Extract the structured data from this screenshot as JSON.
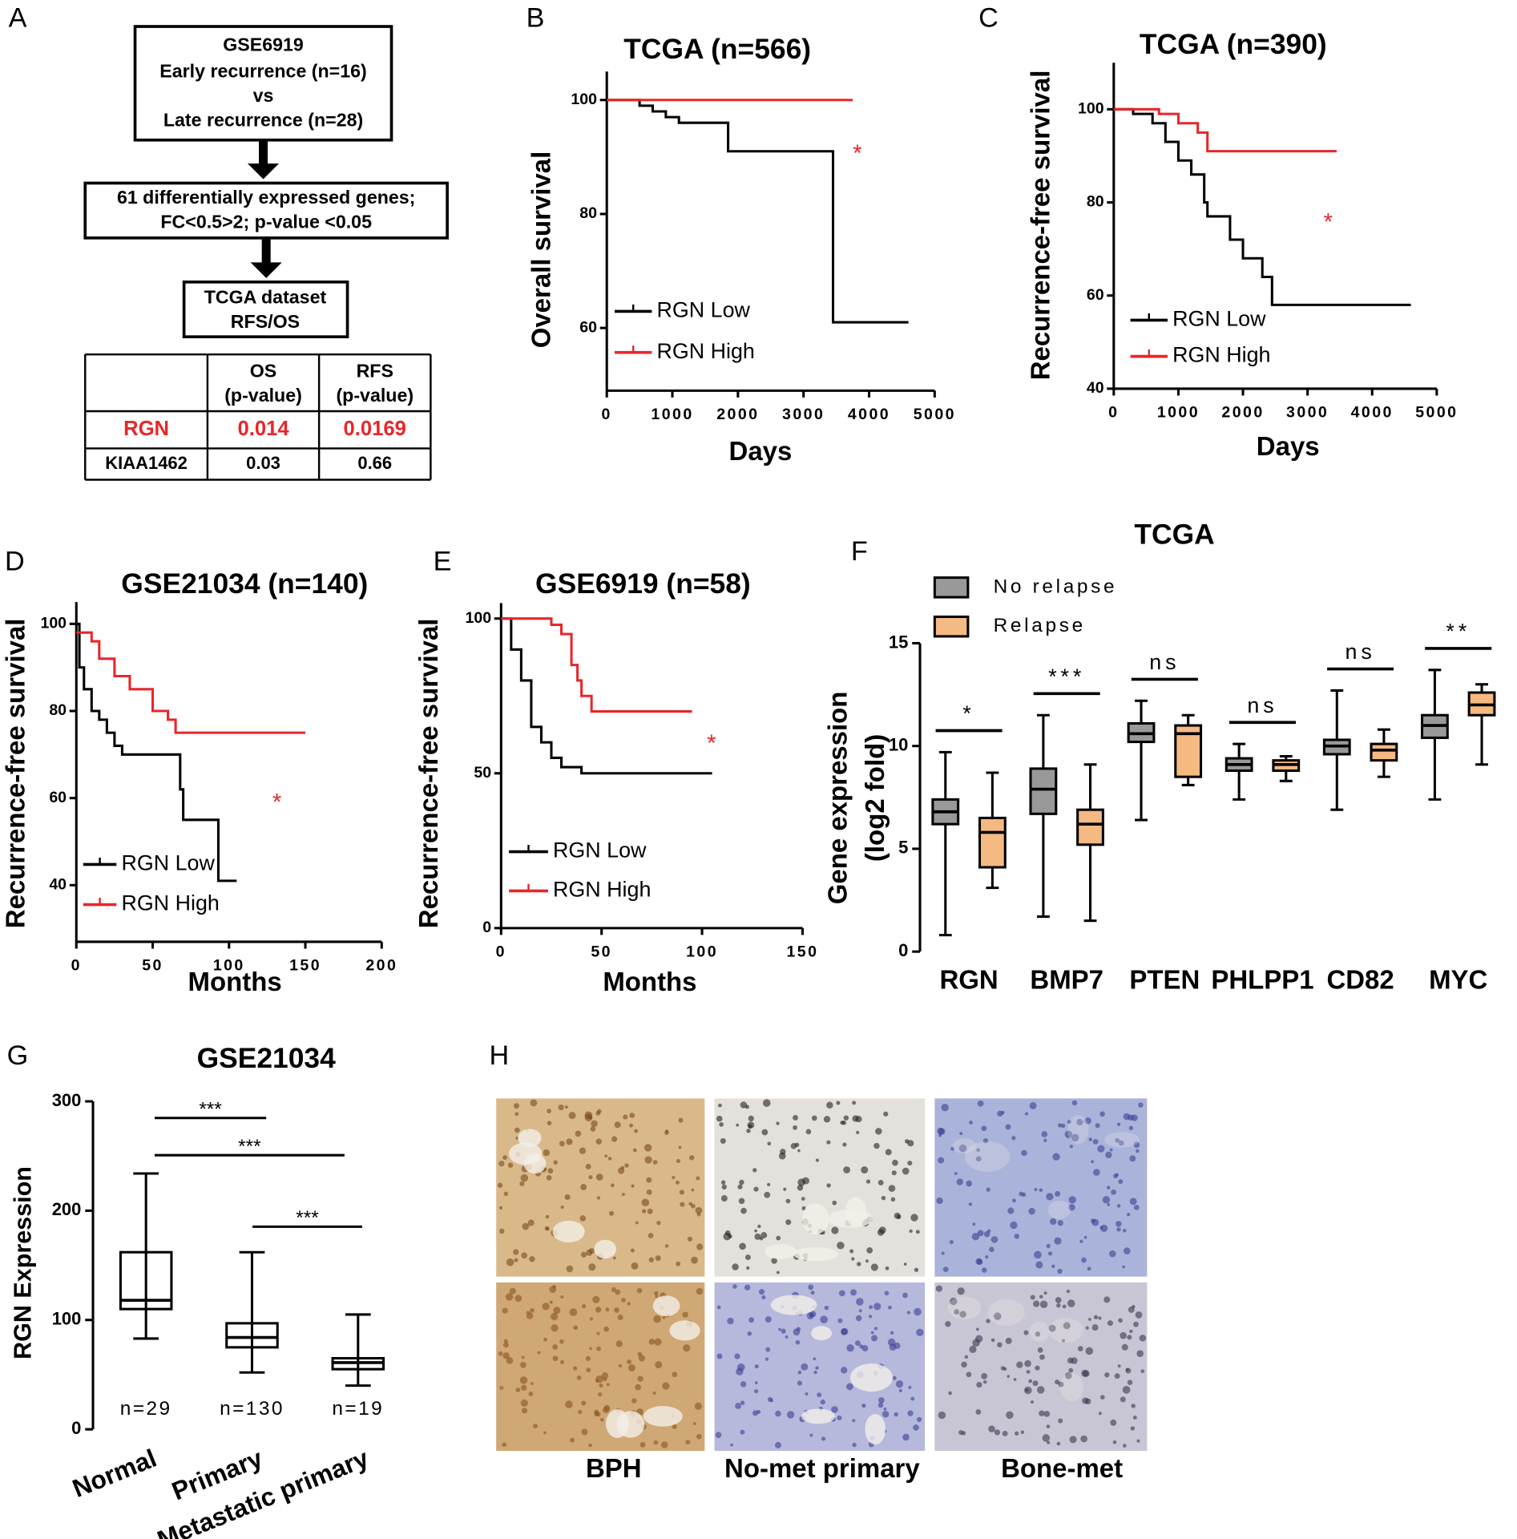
{
  "panel_labels": [
    "A",
    "B",
    "C",
    "D",
    "E",
    "F",
    "G",
    "H"
  ],
  "flowchart": {
    "box1": [
      "GSE6919",
      "Early recurrence (n=16)",
      "vs",
      "Late recurrence (n=28)"
    ],
    "box2": [
      "61 differentially expressed genes;",
      "FC<0.5>2; p-value <0.05"
    ],
    "box3": [
      "TCGA dataset",
      "RFS/OS"
    ]
  },
  "table": {
    "header": [
      [
        "OS",
        "(p-value)"
      ],
      [
        "RFS",
        "(p-value)"
      ]
    ],
    "rows": [
      [
        "RGN",
        "0.014",
        "0.0169"
      ],
      [
        "KIAA1462",
        "0.03",
        "0.66"
      ]
    ]
  },
  "chart_data": [
    {
      "type": "km",
      "title": "TCGA (n=566)",
      "y_label": "Overall survival",
      "x_label": "Days",
      "xlim": [
        0,
        5000
      ],
      "xticks": [
        0,
        1000,
        2000,
        3000,
        4000,
        5000
      ],
      "ylim": [
        49,
        105
      ],
      "yticks": [
        60,
        80,
        100
      ],
      "annotations": [
        "*"
      ],
      "series": [
        {
          "name": "RGN Low",
          "color": "#000000",
          "x": [
            0,
            500,
            700,
            900,
            1100,
            1400,
            1850,
            3450,
            4600
          ],
          "values": [
            100,
            99,
            98,
            97,
            96,
            96,
            91,
            61,
            61
          ]
        },
        {
          "name": "RGN High",
          "color": "#e8262a",
          "x": [
            0,
            3750
          ],
          "values": [
            100,
            100
          ]
        }
      ]
    },
    {
      "type": "km",
      "title": "TCGA (n=390)",
      "y_label": "Recurrence-free survival",
      "x_label": "Days",
      "xlim": [
        0,
        5000
      ],
      "xticks": [
        0,
        1000,
        2000,
        3000,
        4000,
        5000
      ],
      "ylim": [
        40,
        110
      ],
      "yticks": [
        40,
        60,
        80,
        100
      ],
      "annotations": [
        "*"
      ],
      "series": [
        {
          "name": "RGN Low",
          "color": "#000000",
          "x": [
            0,
            300,
            600,
            800,
            1000,
            1200,
            1400,
            1450,
            1800,
            2000,
            2300,
            2450,
            4600
          ],
          "values": [
            100,
            99,
            97,
            93,
            89,
            86,
            80,
            77,
            72,
            68,
            64,
            58,
            58
          ]
        },
        {
          "name": "RGN High",
          "color": "#e8262a",
          "x": [
            0,
            700,
            1000,
            1300,
            1450,
            3450
          ],
          "values": [
            100,
            99,
            97,
            95,
            91,
            91
          ]
        }
      ]
    },
    {
      "type": "km",
      "title": "GSE21034 (n=140)",
      "y_label": "Recurrence-free survival",
      "x_label": "Months",
      "xlim": [
        0,
        200
      ],
      "xticks": [
        0,
        50,
        100,
        150,
        200
      ],
      "ylim": [
        27,
        105
      ],
      "yticks": [
        40,
        60,
        80,
        100
      ],
      "annotations": [
        "*"
      ],
      "series": [
        {
          "name": "RGN Low",
          "color": "#000000",
          "x": [
            0,
            2,
            5,
            10,
            15,
            20,
            25,
            30,
            65,
            68,
            70,
            92,
            93,
            105
          ],
          "values": [
            100,
            90,
            85,
            80,
            78,
            75,
            72,
            70,
            70,
            62,
            55,
            55,
            41,
            41
          ]
        },
        {
          "name": "RGN High",
          "color": "#e8262a",
          "x": [
            0,
            10,
            15,
            25,
            35,
            50,
            60,
            65,
            150
          ],
          "values": [
            98,
            96,
            92,
            88,
            85,
            80,
            78,
            75,
            75
          ]
        }
      ]
    },
    {
      "type": "km",
      "title": "GSE6919 (n=58)",
      "y_label": "Recurrence-free survival",
      "x_label": "Months",
      "xlim": [
        0,
        150
      ],
      "xticks": [
        0,
        50,
        100,
        150
      ],
      "ylim": [
        0,
        105
      ],
      "yticks": [
        0,
        50,
        100
      ],
      "annotations": [
        "*"
      ],
      "series": [
        {
          "name": "RGN Low",
          "color": "#000000",
          "x": [
            0,
            5,
            10,
            15,
            20,
            25,
            30,
            40,
            105
          ],
          "values": [
            100,
            90,
            80,
            65,
            60,
            55,
            52,
            50,
            50
          ]
        },
        {
          "name": "RGN High",
          "color": "#e8262a",
          "x": [
            0,
            25,
            30,
            35,
            38,
            40,
            45,
            95
          ],
          "values": [
            100,
            98,
            95,
            85,
            80,
            75,
            70,
            70
          ]
        }
      ]
    },
    {
      "type": "grouped-box",
      "title": "TCGA",
      "y_label": [
        "Gene expression",
        "(log2 fold)"
      ],
      "categories": [
        "RGN",
        "BMP7",
        "PTEN",
        "PHLPP1",
        "CD82",
        "MYC"
      ],
      "ylim": [
        0,
        15
      ],
      "yticks": [
        0,
        5,
        10,
        15
      ],
      "annotations": [
        "*",
        "***",
        "ns",
        "ns",
        "ns",
        "**"
      ],
      "series": [
        {
          "name": "No relapse",
          "color": "#999999",
          "values": [
            [
              0.8,
              6.2,
              6.8,
              7.4,
              9.7
            ],
            [
              1.7,
              6.7,
              7.9,
              8.9,
              11.5
            ],
            [
              6.4,
              10.2,
              10.6,
              11.1,
              12.2
            ],
            [
              7.4,
              8.8,
              9.1,
              9.4,
              10.1
            ],
            [
              6.9,
              9.6,
              10.0,
              10.3,
              12.7
            ],
            [
              7.4,
              10.4,
              11.0,
              11.5,
              13.7
            ]
          ]
        },
        {
          "name": "Relapse",
          "color": "#f5b982",
          "values": [
            [
              3.1,
              4.1,
              5.8,
              6.5,
              8.7
            ],
            [
              1.5,
              5.2,
              6.2,
              6.9,
              9.1
            ],
            [
              8.1,
              8.5,
              10.6,
              11.0,
              11.5
            ],
            [
              8.3,
              8.8,
              9.1,
              9.3,
              9.5
            ],
            [
              8.5,
              9.3,
              9.8,
              10.1,
              10.8
            ],
            [
              9.1,
              11.5,
              12.0,
              12.6,
              13.0
            ]
          ]
        }
      ]
    },
    {
      "type": "box",
      "title": "GSE21034",
      "y_label": "RGN Expression",
      "categories": [
        "Normal",
        "Primary",
        "Metastatic primary"
      ],
      "ylim": [
        0,
        300
      ],
      "yticks": [
        0,
        100,
        200,
        300
      ],
      "values": [
        [
          83,
          110,
          118,
          162,
          234
        ],
        [
          52,
          75,
          84,
          97,
          162
        ],
        [
          40,
          55,
          61,
          65,
          105
        ]
      ],
      "n_labels": [
        "n=29",
        "n=130",
        "n=19"
      ],
      "annotations": [
        "***",
        "***",
        "***"
      ]
    }
  ],
  "histology": {
    "labels": [
      "BPH",
      "No-met primary",
      "Bone-met"
    ]
  }
}
